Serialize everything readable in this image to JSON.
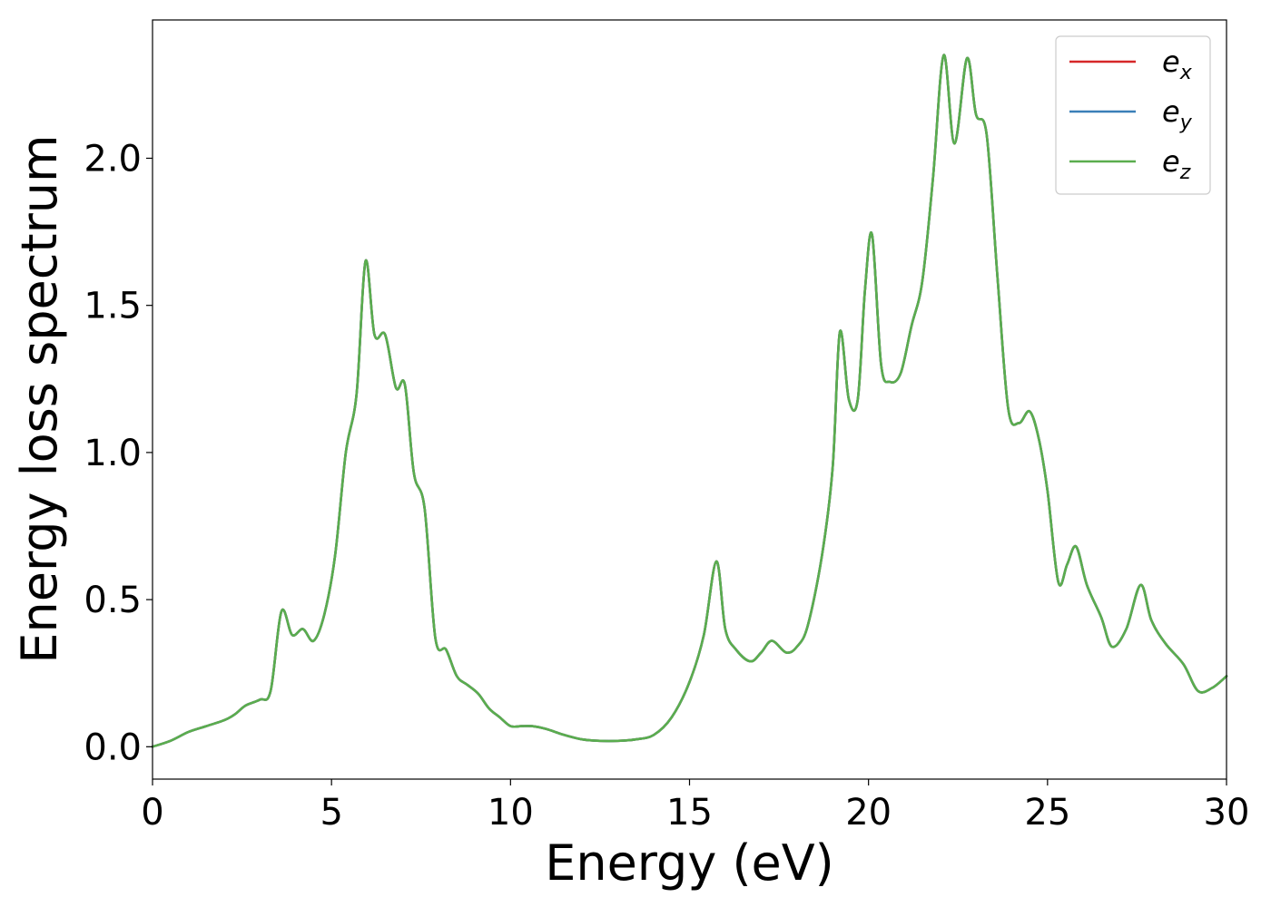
{
  "chart_data": {
    "type": "line",
    "xlabel": "Energy (eV)",
    "ylabel": "Energy loss spectrum",
    "xlim": [
      0,
      30
    ],
    "ylim": [
      -0.11,
      2.47
    ],
    "xticks": [
      0,
      5,
      10,
      15,
      20,
      25,
      30
    ],
    "yticks": [
      0.0,
      0.5,
      1.0,
      1.5,
      2.0
    ],
    "xtick_labels": [
      "0",
      "5",
      "10",
      "15",
      "20",
      "25",
      "30"
    ],
    "ytick_labels": [
      "0.0",
      "0.5",
      "1.0",
      "1.5",
      "2.0"
    ],
    "grid": false,
    "legend_position": "top-right",
    "series": [
      {
        "name": "e_x",
        "base": "e",
        "sub": "x",
        "color": "#d62728",
        "x": [
          0,
          0.5,
          1.0,
          1.5,
          2.0,
          2.3,
          2.6,
          3.0,
          3.3,
          3.6,
          3.9,
          4.2,
          4.5,
          4.8,
          5.1,
          5.4,
          5.7,
          5.95,
          6.2,
          6.5,
          6.8,
          7.05,
          7.3,
          7.6,
          7.9,
          8.2,
          8.5,
          8.8,
          9.1,
          9.4,
          9.7,
          10.0,
          10.3,
          10.6,
          11.0,
          11.5,
          12.0,
          12.5,
          13.0,
          13.5,
          14.0,
          14.5,
          15.0,
          15.4,
          15.75,
          16.0,
          16.3,
          16.7,
          17.0,
          17.3,
          17.7,
          18.0,
          18.3,
          18.7,
          19.0,
          19.2,
          19.45,
          19.7,
          19.9,
          20.1,
          20.35,
          20.6,
          20.9,
          21.2,
          21.5,
          21.8,
          22.1,
          22.4,
          22.75,
          23.0,
          23.3,
          23.6,
          23.9,
          24.2,
          24.5,
          24.75,
          25.0,
          25.3,
          25.55,
          25.8,
          26.1,
          26.5,
          26.8,
          27.2,
          27.6,
          27.9,
          28.3,
          28.8,
          29.2,
          29.6,
          30.0
        ],
        "y": [
          0.0,
          0.02,
          0.05,
          0.07,
          0.09,
          0.11,
          0.14,
          0.16,
          0.19,
          0.46,
          0.38,
          0.4,
          0.36,
          0.45,
          0.65,
          1.0,
          1.2,
          1.65,
          1.4,
          1.4,
          1.22,
          1.23,
          0.93,
          0.81,
          0.37,
          0.33,
          0.24,
          0.21,
          0.18,
          0.13,
          0.1,
          0.07,
          0.07,
          0.07,
          0.06,
          0.04,
          0.025,
          0.02,
          0.02,
          0.025,
          0.04,
          0.1,
          0.22,
          0.38,
          0.63,
          0.4,
          0.33,
          0.29,
          0.32,
          0.36,
          0.32,
          0.34,
          0.41,
          0.65,
          0.95,
          1.41,
          1.18,
          1.18,
          1.55,
          1.74,
          1.3,
          1.24,
          1.27,
          1.43,
          1.58,
          1.93,
          2.35,
          2.05,
          2.34,
          2.15,
          2.08,
          1.6,
          1.15,
          1.1,
          1.14,
          1.05,
          0.87,
          0.56,
          0.62,
          0.68,
          0.55,
          0.44,
          0.34,
          0.4,
          0.55,
          0.43,
          0.35,
          0.28,
          0.19,
          0.2,
          0.24
        ]
      },
      {
        "name": "e_y",
        "base": "e",
        "sub": "y",
        "color": "#3a7fb8",
        "x": [
          0,
          0.5,
          1.0,
          1.5,
          2.0,
          2.3,
          2.6,
          3.0,
          3.3,
          3.6,
          3.9,
          4.2,
          4.5,
          4.8,
          5.1,
          5.4,
          5.7,
          5.95,
          6.2,
          6.5,
          6.8,
          7.05,
          7.3,
          7.6,
          7.9,
          8.2,
          8.5,
          8.8,
          9.1,
          9.4,
          9.7,
          10.0,
          10.3,
          10.6,
          11.0,
          11.5,
          12.0,
          12.5,
          13.0,
          13.5,
          14.0,
          14.5,
          15.0,
          15.4,
          15.75,
          16.0,
          16.3,
          16.7,
          17.0,
          17.3,
          17.7,
          18.0,
          18.3,
          18.7,
          19.0,
          19.2,
          19.45,
          19.7,
          19.9,
          20.1,
          20.35,
          20.6,
          20.9,
          21.2,
          21.5,
          21.8,
          22.1,
          22.4,
          22.75,
          23.0,
          23.3,
          23.6,
          23.9,
          24.2,
          24.5,
          24.75,
          25.0,
          25.3,
          25.55,
          25.8,
          26.1,
          26.5,
          26.8,
          27.2,
          27.6,
          27.9,
          28.3,
          28.8,
          29.2,
          29.6,
          30.0
        ],
        "y": [
          0.0,
          0.02,
          0.05,
          0.07,
          0.09,
          0.11,
          0.14,
          0.16,
          0.19,
          0.46,
          0.38,
          0.4,
          0.36,
          0.45,
          0.65,
          1.0,
          1.2,
          1.65,
          1.4,
          1.4,
          1.22,
          1.23,
          0.93,
          0.81,
          0.37,
          0.33,
          0.24,
          0.21,
          0.18,
          0.13,
          0.1,
          0.07,
          0.07,
          0.07,
          0.06,
          0.04,
          0.025,
          0.02,
          0.02,
          0.025,
          0.04,
          0.1,
          0.22,
          0.38,
          0.63,
          0.4,
          0.33,
          0.29,
          0.32,
          0.36,
          0.32,
          0.34,
          0.41,
          0.65,
          0.95,
          1.41,
          1.18,
          1.18,
          1.55,
          1.74,
          1.3,
          1.24,
          1.27,
          1.43,
          1.58,
          1.93,
          2.35,
          2.05,
          2.34,
          2.15,
          2.08,
          1.6,
          1.15,
          1.1,
          1.14,
          1.05,
          0.87,
          0.56,
          0.62,
          0.68,
          0.55,
          0.44,
          0.34,
          0.4,
          0.55,
          0.43,
          0.35,
          0.28,
          0.19,
          0.2,
          0.24
        ]
      },
      {
        "name": "e_z",
        "base": "e",
        "sub": "z",
        "color": "#5aad4e",
        "x": [
          0,
          0.5,
          1.0,
          1.5,
          2.0,
          2.3,
          2.6,
          3.0,
          3.3,
          3.6,
          3.9,
          4.2,
          4.5,
          4.8,
          5.1,
          5.4,
          5.7,
          5.95,
          6.2,
          6.5,
          6.8,
          7.05,
          7.3,
          7.6,
          7.9,
          8.2,
          8.5,
          8.8,
          9.1,
          9.4,
          9.7,
          10.0,
          10.3,
          10.6,
          11.0,
          11.5,
          12.0,
          12.5,
          13.0,
          13.5,
          14.0,
          14.5,
          15.0,
          15.4,
          15.75,
          16.0,
          16.3,
          16.7,
          17.0,
          17.3,
          17.7,
          18.0,
          18.3,
          18.7,
          19.0,
          19.2,
          19.45,
          19.7,
          19.9,
          20.1,
          20.35,
          20.6,
          20.9,
          21.2,
          21.5,
          21.8,
          22.1,
          22.4,
          22.75,
          23.0,
          23.3,
          23.6,
          23.9,
          24.2,
          24.5,
          24.75,
          25.0,
          25.3,
          25.55,
          25.8,
          26.1,
          26.5,
          26.8,
          27.2,
          27.6,
          27.9,
          28.3,
          28.8,
          29.2,
          29.6,
          30.0
        ],
        "y": [
          0.0,
          0.02,
          0.05,
          0.07,
          0.09,
          0.11,
          0.14,
          0.16,
          0.19,
          0.46,
          0.38,
          0.4,
          0.36,
          0.45,
          0.65,
          1.0,
          1.2,
          1.65,
          1.4,
          1.4,
          1.22,
          1.23,
          0.93,
          0.81,
          0.37,
          0.33,
          0.24,
          0.21,
          0.18,
          0.13,
          0.1,
          0.07,
          0.07,
          0.07,
          0.06,
          0.04,
          0.025,
          0.02,
          0.02,
          0.025,
          0.04,
          0.1,
          0.22,
          0.38,
          0.63,
          0.4,
          0.33,
          0.29,
          0.32,
          0.36,
          0.32,
          0.34,
          0.41,
          0.65,
          0.95,
          1.41,
          1.18,
          1.18,
          1.55,
          1.74,
          1.3,
          1.24,
          1.27,
          1.43,
          1.58,
          1.93,
          2.35,
          2.05,
          2.34,
          2.15,
          2.08,
          1.6,
          1.15,
          1.1,
          1.14,
          1.05,
          0.87,
          0.56,
          0.62,
          0.68,
          0.55,
          0.44,
          0.34,
          0.4,
          0.55,
          0.43,
          0.35,
          0.28,
          0.19,
          0.2,
          0.24
        ]
      }
    ]
  }
}
